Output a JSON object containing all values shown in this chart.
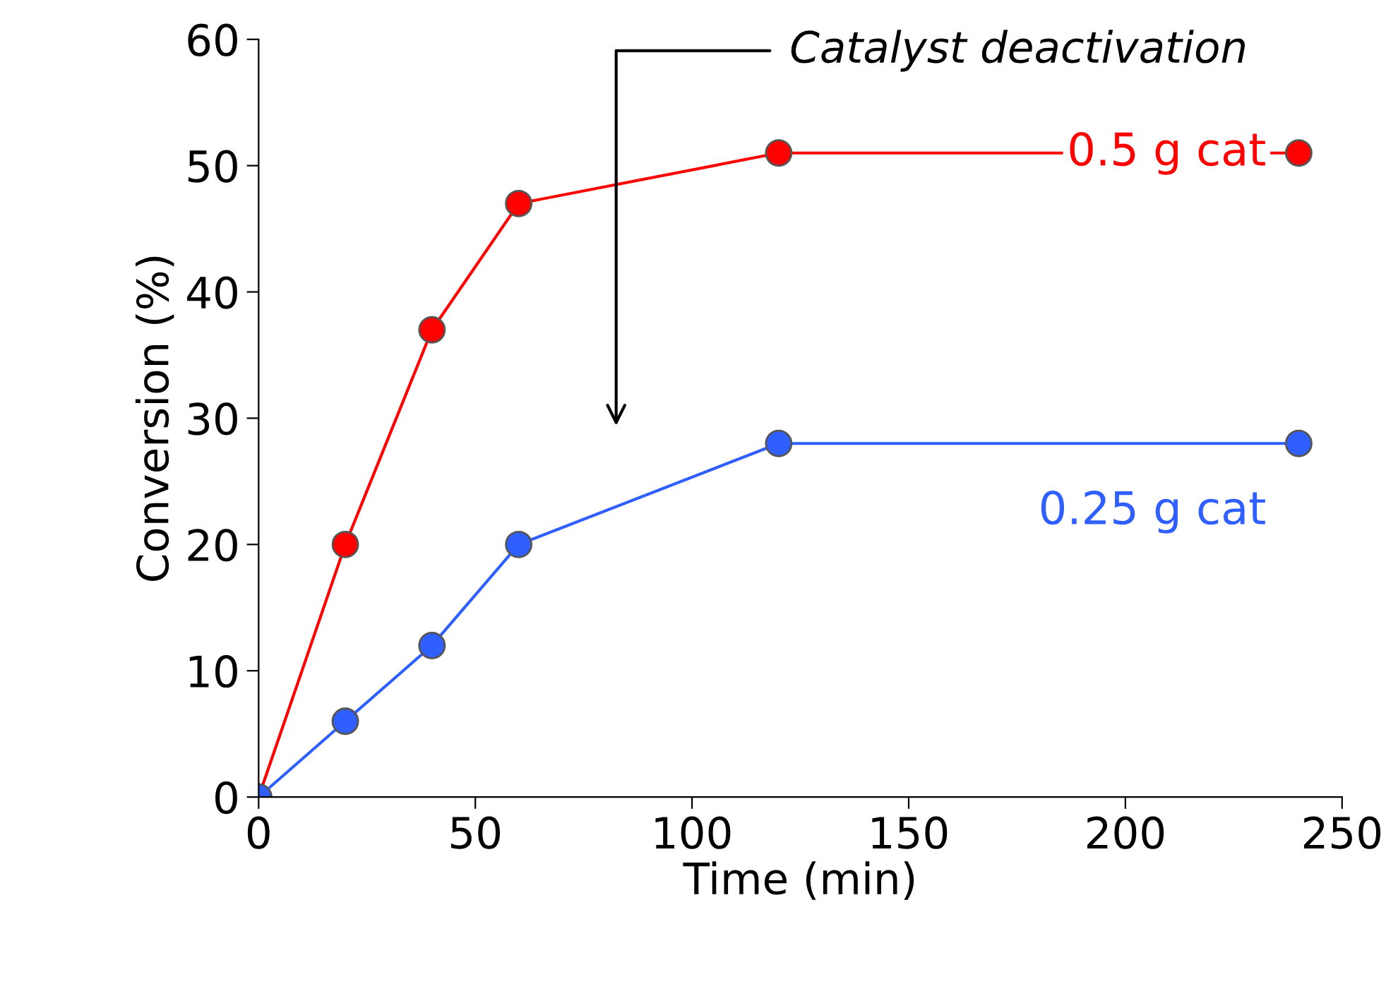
{
  "chart_data": {
    "type": "line",
    "xlabel": "Time (min)",
    "ylabel": "Conversion (%)",
    "x": [
      0,
      20,
      40,
      60,
      120,
      240
    ],
    "series": [
      {
        "name": "0.5 g cat",
        "color": "#ff0000",
        "values": [
          0,
          20,
          37,
          47,
          51,
          51
        ]
      },
      {
        "name": "0.25 g cat",
        "color": "#2f5fff",
        "values": [
          0,
          6,
          12,
          20,
          28,
          28
        ]
      }
    ],
    "xlim": [
      0,
      250
    ],
    "xticks": [
      0,
      50,
      100,
      150,
      200,
      250
    ],
    "ylim": [
      0,
      60
    ],
    "yticks": [
      0,
      10,
      20,
      30,
      40,
      50,
      60
    ],
    "marker": "circle",
    "line_style": "solid",
    "grid": false,
    "legend": false,
    "annotations": [
      "Catalyst deactivation"
    ]
  }
}
